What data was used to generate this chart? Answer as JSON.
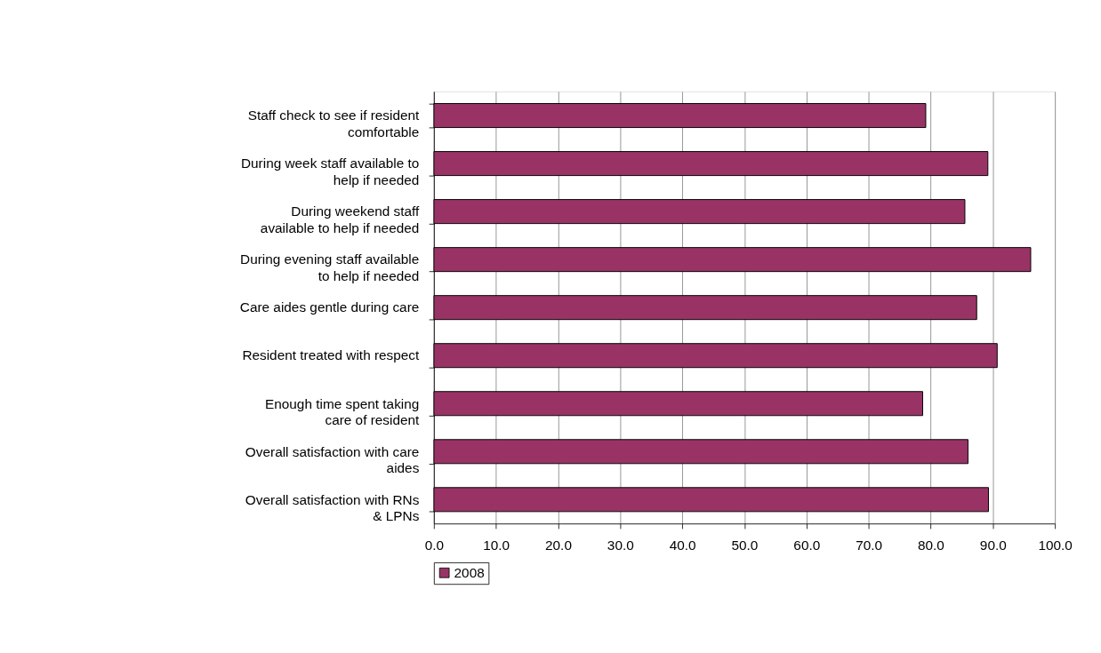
{
  "chart_data": {
    "type": "bar",
    "orientation": "horizontal",
    "categories": [
      "Staff check to see if resident comfortable",
      "During week staff available to help if needed",
      "During weekend staff available to help if needed",
      "During evening staff available to help if needed",
      "Care aides gentle during care",
      "Resident treated with respect",
      "Enough time spent taking care of resident",
      "Overall satisfaction with care aides",
      "Overall satisfaction with RNs & LPNs"
    ],
    "series": [
      {
        "name": "2008",
        "color": "#993366",
        "values": [
          79.2,
          89.2,
          85.5,
          96.1,
          87.4,
          90.7,
          78.7,
          86.0,
          89.3
        ]
      }
    ],
    "xlim": [
      0,
      100
    ],
    "xticks": [
      {
        "value": 0,
        "label": "0.0"
      },
      {
        "value": 10,
        "label": "10.0"
      },
      {
        "value": 20,
        "label": "20.0"
      },
      {
        "value": 30,
        "label": "30.0"
      },
      {
        "value": 40,
        "label": "40.0"
      },
      {
        "value": 50,
        "label": "50.0"
      },
      {
        "value": 60,
        "label": "60.0"
      },
      {
        "value": 70,
        "label": "70.0"
      },
      {
        "value": 80,
        "label": "80.0"
      },
      {
        "value": 90,
        "label": "90.0"
      },
      {
        "value": 100,
        "label": "100.0"
      }
    ],
    "grid": "x",
    "legend": "bottom"
  }
}
